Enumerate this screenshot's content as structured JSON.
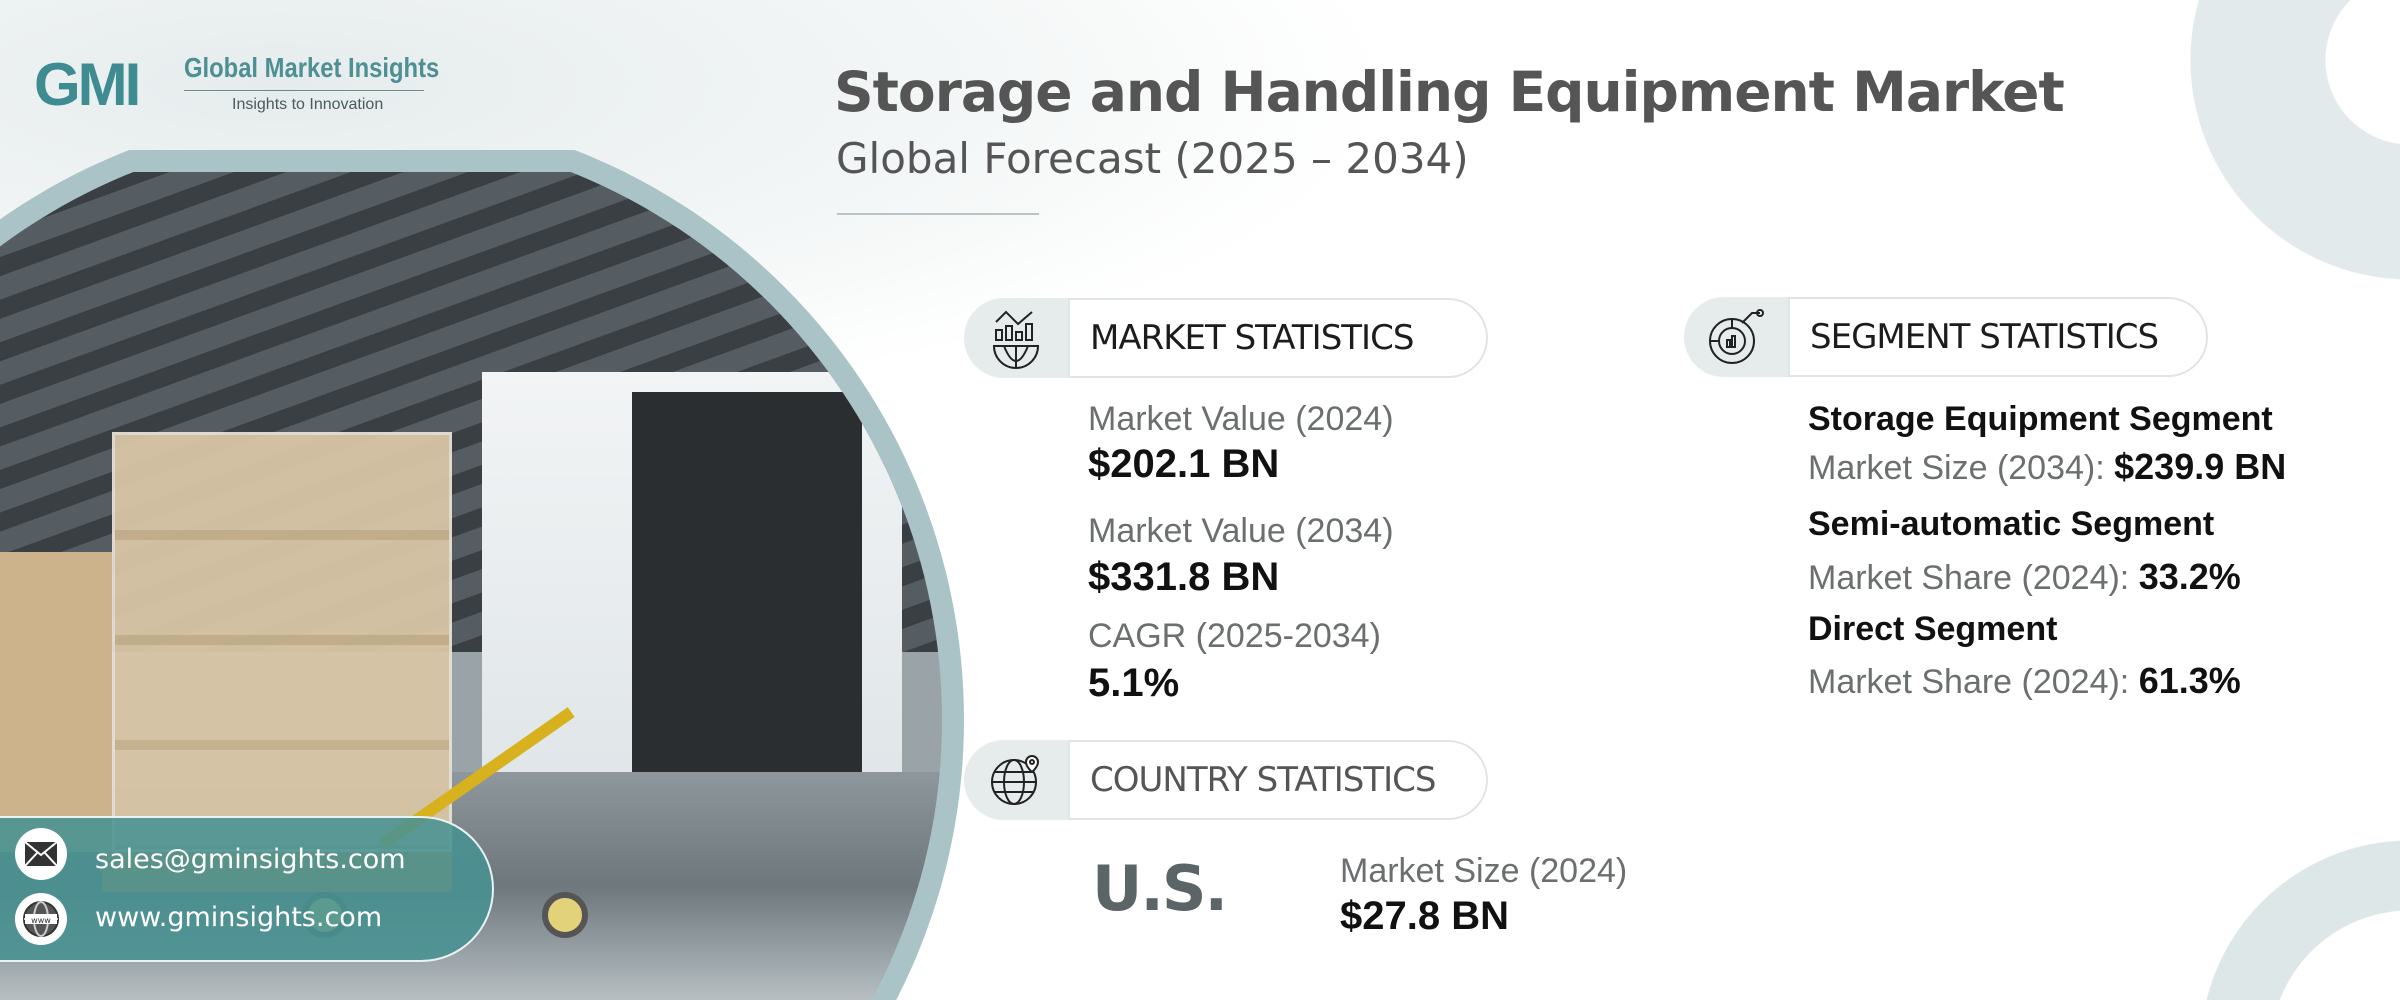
{
  "brand": {
    "logo_mark": "GMI",
    "name": "Global Market Insights",
    "tagline": "Insights to Innovation"
  },
  "header": {
    "title": "Storage and Handling Equipment Market",
    "subtitle": "Global Forecast (2025 – 2034)"
  },
  "market_statistics": {
    "heading": "MARKET STATISTICS",
    "icon": "chart-globe-icon",
    "items": [
      {
        "label": "Market Value (2024)",
        "value": "$202.1 BN"
      },
      {
        "label": "Market Value (2034)",
        "value": "$331.8 BN"
      },
      {
        "label": "CAGR (2025-2034)",
        "value": "5.1%"
      }
    ]
  },
  "segment_statistics": {
    "heading": "SEGMENT STATISTICS",
    "icon": "pie-chart-icon",
    "items": [
      {
        "name": "Storage Equipment Segment",
        "label": "Market Size (2034):",
        "value": "$239.9 BN"
      },
      {
        "name": "Semi-automatic Segment",
        "label": "Market Share (2024):",
        "value": "33.2%"
      },
      {
        "name": "Direct Segment",
        "label": "Market Share (2024):",
        "value": "61.3%"
      }
    ]
  },
  "country_statistics": {
    "heading": "COUNTRY STATISTICS",
    "icon": "globe-pin-icon",
    "country": "U.S.",
    "label": "Market Size (2024)",
    "value": "$27.8 BN"
  },
  "contact": {
    "email": "sales@gminsights.com",
    "website": "www.gminsights.com"
  },
  "colors": {
    "accent": "#4f9797",
    "ring": "#a9c3c6",
    "title": "#555555"
  }
}
